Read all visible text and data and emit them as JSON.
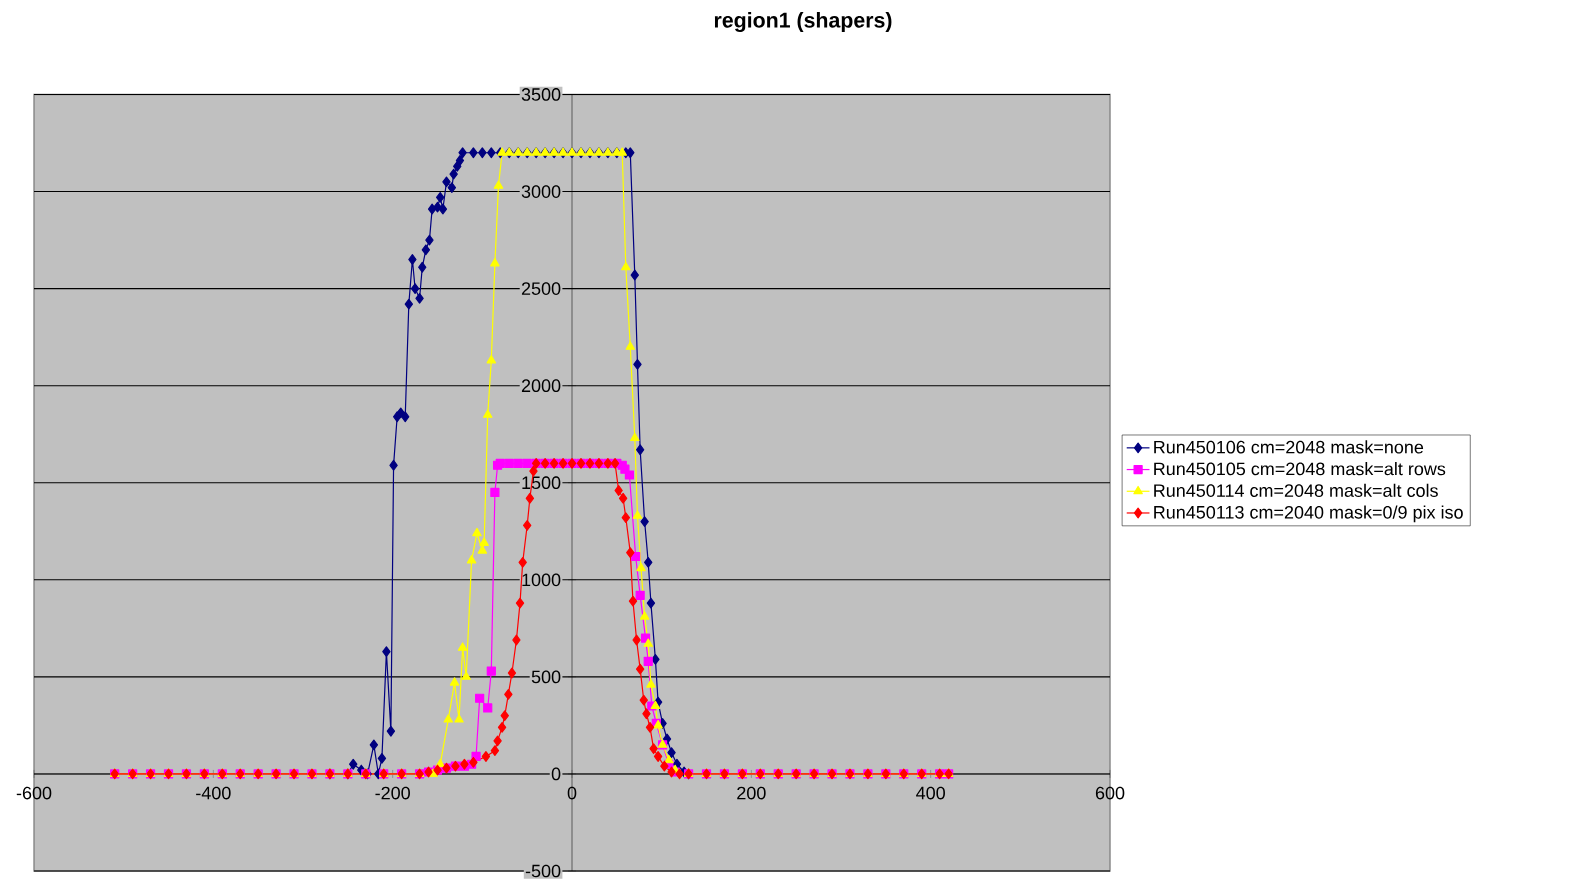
{
  "chart_data": {
    "type": "line",
    "title": "region1 (shapers)",
    "xlim": [
      -600,
      600
    ],
    "xticks": [
      -600,
      -400,
      -200,
      0,
      200,
      400,
      600
    ],
    "ylim": [
      -500,
      3500
    ],
    "yticks": [
      -500,
      0,
      500,
      1000,
      1500,
      2000,
      2500,
      3000,
      3500
    ],
    "grid": "y",
    "legend": "right",
    "series": [
      {
        "name": "Run450106 cm=2048 mask=none",
        "color": "#000080",
        "marker": "diamond",
        "x": [
          -270,
          -250,
          -244,
          -235,
          -228,
          -221,
          -216,
          -212,
          -207,
          -202,
          -199,
          -195,
          -191,
          -186,
          -182,
          -178,
          -175,
          -170,
          -167,
          -163,
          -159,
          -156,
          -150,
          -147,
          -144,
          -140,
          -134,
          -132,
          -128,
          -125,
          -122,
          -110,
          -100,
          -90,
          -80,
          -70,
          -60,
          -50,
          -40,
          -30,
          -20,
          -10,
          0,
          10,
          20,
          30,
          40,
          50,
          60,
          65,
          70,
          73,
          76,
          81,
          85,
          88,
          93,
          96,
          101,
          106,
          111,
          117,
          125,
          130
        ],
        "values": [
          0,
          0,
          50,
          20,
          0,
          150,
          0,
          80,
          630,
          220,
          1590,
          1840,
          1860,
          1840,
          2420,
          2650,
          2500,
          2450,
          2610,
          2700,
          2750,
          2910,
          2920,
          2970,
          2910,
          3050,
          3020,
          3090,
          3130,
          3160,
          3200,
          3200,
          3200,
          3200,
          3200,
          3200,
          3200,
          3200,
          3200,
          3200,
          3200,
          3200,
          3200,
          3200,
          3200,
          3200,
          3200,
          3200,
          3200,
          3200,
          2570,
          2110,
          1670,
          1300,
          1090,
          880,
          590,
          370,
          260,
          180,
          110,
          50,
          10,
          0
        ]
      },
      {
        "name": "Run450105 cm=2048 mask=alt rows",
        "color": "#ff00ff",
        "marker": "square",
        "x": [
          -510,
          -490,
          -470,
          -450,
          -430,
          -410,
          -390,
          -370,
          -350,
          -330,
          -310,
          -290,
          -270,
          -250,
          -230,
          -210,
          -190,
          -170,
          -160,
          -150,
          -140,
          -130,
          -120,
          -112,
          -107,
          -103,
          -94,
          -90,
          -86,
          -83,
          -80,
          -70,
          -60,
          -50,
          -40,
          -30,
          -20,
          -10,
          0,
          10,
          20,
          30,
          40,
          50,
          56,
          59,
          64,
          71,
          76,
          82,
          85,
          89,
          94,
          101,
          108,
          115,
          130,
          150,
          170,
          190,
          210,
          230,
          250,
          270,
          290,
          310,
          330,
          350,
          370,
          390,
          410,
          420
        ],
        "values": [
          0,
          0,
          0,
          0,
          0,
          0,
          0,
          0,
          0,
          0,
          0,
          0,
          0,
          0,
          0,
          0,
          0,
          0,
          10,
          20,
          30,
          40,
          40,
          50,
          90,
          390,
          340,
          530,
          1450,
          1590,
          1600,
          1600,
          1600,
          1600,
          1600,
          1600,
          1600,
          1600,
          1600,
          1600,
          1600,
          1600,
          1600,
          1600,
          1590,
          1570,
          1540,
          1120,
          920,
          700,
          580,
          350,
          260,
          150,
          50,
          10,
          0,
          0,
          0,
          0,
          0,
          0,
          0,
          0,
          0,
          0,
          0,
          0,
          0,
          0,
          0,
          0
        ]
      },
      {
        "name": "Run450114 cm=2048 mask=alt cols",
        "color": "#ffff00",
        "marker": "triangle",
        "x": [
          -510,
          -490,
          -470,
          -450,
          -430,
          -410,
          -390,
          -370,
          -350,
          -330,
          -310,
          -290,
          -270,
          -250,
          -230,
          -210,
          -190,
          -170,
          -155,
          -147,
          -138,
          -131,
          -126,
          -122,
          -118,
          -112,
          -106,
          -100,
          -98,
          -94,
          -90,
          -86,
          -82,
          -78,
          -70,
          -60,
          -50,
          -40,
          -30,
          -20,
          -10,
          0,
          10,
          20,
          30,
          40,
          50,
          56,
          60,
          65,
          70,
          73,
          77,
          81,
          85,
          88,
          93,
          96,
          101,
          108,
          115,
          130,
          150,
          170,
          190,
          210,
          230,
          250,
          270,
          290,
          310,
          330,
          350,
          370,
          390,
          410,
          420
        ],
        "values": [
          0,
          0,
          0,
          0,
          0,
          0,
          0,
          0,
          0,
          0,
          0,
          0,
          0,
          0,
          0,
          0,
          0,
          0,
          0,
          50,
          280,
          470,
          280,
          650,
          500,
          1100,
          1240,
          1150,
          1190,
          1850,
          2130,
          2630,
          3030,
          3200,
          3200,
          3200,
          3200,
          3200,
          3200,
          3200,
          3200,
          3200,
          3200,
          3200,
          3200,
          3200,
          3200,
          3200,
          2610,
          2200,
          1730,
          1330,
          1060,
          810,
          670,
          460,
          350,
          250,
          150,
          70,
          20,
          0,
          0,
          0,
          0,
          0,
          0,
          0,
          0,
          0,
          0,
          0,
          0,
          0,
          0,
          0,
          0
        ]
      },
      {
        "name": "Run450113 cm=2040 mask=0/9 pix iso",
        "color": "#ff0000",
        "marker": "diamond",
        "x": [
          -510,
          -490,
          -470,
          -450,
          -430,
          -410,
          -390,
          -370,
          -350,
          -330,
          -310,
          -290,
          -270,
          -250,
          -230,
          -210,
          -190,
          -170,
          -160,
          -150,
          -140,
          -130,
          -120,
          -110,
          -96,
          -86,
          -83,
          -78,
          -75,
          -71,
          -67,
          -62,
          -58,
          -55,
          -50,
          -47,
          -43,
          -40,
          -30,
          -20,
          -10,
          0,
          10,
          20,
          30,
          40,
          48,
          52,
          57,
          60,
          65,
          68,
          72,
          76,
          80,
          83,
          87,
          91,
          96,
          103,
          111,
          120,
          130,
          150,
          170,
          190,
          210,
          230,
          250,
          270,
          290,
          310,
          330,
          350,
          370,
          390,
          410,
          420
        ],
        "values": [
          0,
          0,
          0,
          0,
          0,
          0,
          0,
          0,
          0,
          0,
          0,
          0,
          0,
          0,
          0,
          0,
          0,
          0,
          10,
          20,
          30,
          40,
          50,
          60,
          90,
          120,
          170,
          240,
          300,
          410,
          520,
          690,
          880,
          1090,
          1280,
          1420,
          1560,
          1600,
          1600,
          1600,
          1600,
          1600,
          1600,
          1600,
          1600,
          1600,
          1600,
          1460,
          1420,
          1320,
          1140,
          890,
          690,
          540,
          380,
          310,
          240,
          130,
          90,
          40,
          10,
          0,
          0,
          0,
          0,
          0,
          0,
          0,
          0,
          0,
          0,
          0,
          0,
          0,
          0,
          0,
          0,
          0
        ]
      }
    ]
  }
}
